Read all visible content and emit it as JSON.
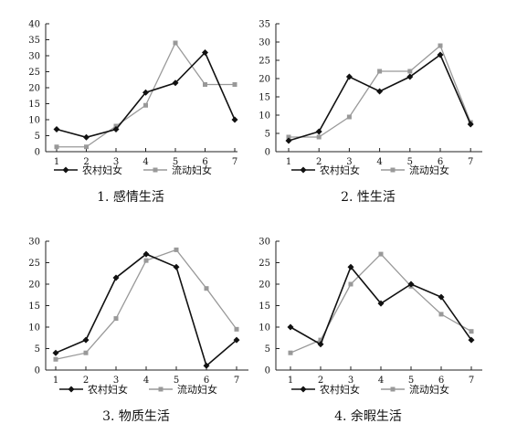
{
  "chart_data": [
    {
      "type": "line",
      "caption": "1. 感情生活",
      "categories": [
        "1",
        "2",
        "3",
        "4",
        "5",
        "6",
        "7"
      ],
      "ylim": [
        0,
        40
      ],
      "yticks": [
        0,
        5,
        10,
        15,
        20,
        25,
        30,
        35,
        40
      ],
      "series": [
        {
          "name": "农村妇女",
          "color": "#111111",
          "marker": "diamond",
          "values": [
            7,
            4.5,
            7,
            18.5,
            21.5,
            31,
            10
          ]
        },
        {
          "name": "流动妇女",
          "color": "#999999",
          "marker": "square",
          "values": [
            1.5,
            1.5,
            8,
            14.5,
            34,
            21,
            21
          ]
        }
      ]
    },
    {
      "type": "line",
      "caption": "2. 性生活",
      "categories": [
        "1",
        "2",
        "3",
        "4",
        "5",
        "6",
        "7"
      ],
      "ylim": [
        0,
        35
      ],
      "yticks": [
        0,
        5,
        10,
        15,
        20,
        25,
        30,
        35
      ],
      "series": [
        {
          "name": "农村妇女",
          "color": "#111111",
          "marker": "diamond",
          "values": [
            3,
            5.5,
            20.5,
            16.5,
            20.5,
            26.5,
            7.5
          ]
        },
        {
          "name": "流动妇女",
          "color": "#999999",
          "marker": "square",
          "values": [
            4,
            4,
            9.5,
            22,
            22,
            29,
            8
          ]
        }
      ]
    },
    {
      "type": "line",
      "caption": "3. 物质生活",
      "categories": [
        "1",
        "2",
        "3",
        "4",
        "5",
        "6",
        "7"
      ],
      "ylim": [
        0,
        30
      ],
      "yticks": [
        0,
        5,
        10,
        15,
        20,
        25,
        30
      ],
      "series": [
        {
          "name": "农村妇女",
          "color": "#111111",
          "marker": "diamond",
          "values": [
            4,
            7,
            21.5,
            27,
            24,
            1,
            7
          ]
        },
        {
          "name": "流动妇女",
          "color": "#999999",
          "marker": "square",
          "values": [
            2.5,
            4,
            12,
            25.5,
            28,
            19,
            9.5
          ]
        }
      ]
    },
    {
      "type": "line",
      "caption": "4. 余暇生活",
      "categories": [
        "1",
        "2",
        "3",
        "4",
        "5",
        "6",
        "7"
      ],
      "ylim": [
        0,
        30
      ],
      "yticks": [
        0,
        5,
        10,
        15,
        20,
        25,
        30
      ],
      "series": [
        {
          "name": "农村妇女",
          "color": "#111111",
          "marker": "diamond",
          "values": [
            10,
            6,
            24,
            15.5,
            20,
            17,
            7
          ]
        },
        {
          "name": "流动妇女",
          "color": "#999999",
          "marker": "square",
          "values": [
            4,
            7,
            20,
            27,
            19.5,
            13,
            9
          ]
        }
      ]
    }
  ]
}
